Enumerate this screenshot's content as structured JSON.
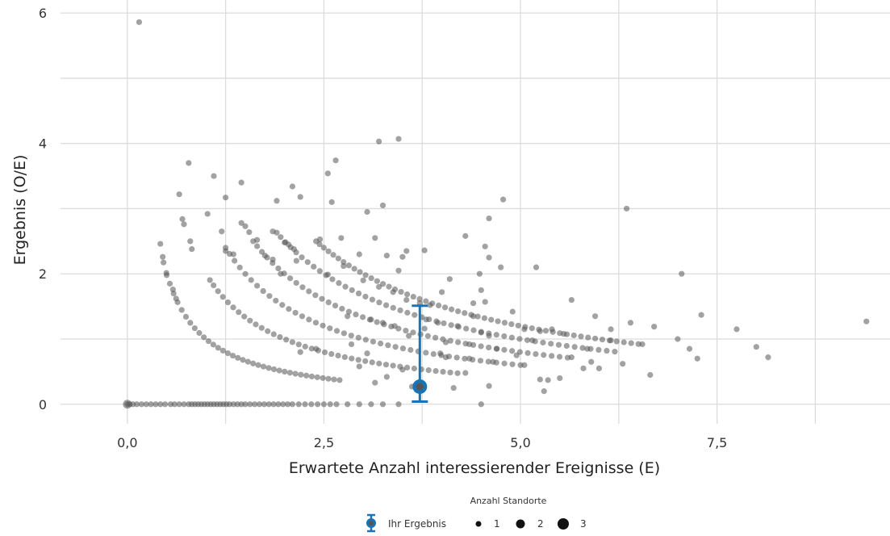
{
  "chart_data": {
    "type": "scatter",
    "xlabel": "Erwartete Anzahl interessierender Ereignisse (E)",
    "ylabel": "Ergebnis (O/E)",
    "xlim": [
      -0.85,
      9.7
    ],
    "ylim": [
      -0.3,
      6.2
    ],
    "x_ticks": [
      0,
      2.5,
      5,
      7.5
    ],
    "x_tick_labels": [
      "0,0",
      "2,5",
      "5,0",
      "7,5"
    ],
    "x_minor_ticks": [
      1.25,
      3.75,
      6.25,
      8.75
    ],
    "y_ticks": [
      0,
      2,
      4,
      6
    ],
    "y_tick_labels": [
      "0",
      "2",
      "4",
      "6"
    ],
    "y_minor_ticks": [
      1,
      3,
      5
    ],
    "grid": true,
    "point_color": "#555555",
    "highlight_color": "#1a73b5",
    "series": [
      {
        "name": "Ihr Ergebnis",
        "x": 3.72,
        "y": 0.27,
        "ci_low": 0.04,
        "ci_high": 1.51
      }
    ],
    "zero_points": [
      0.0,
      0.03,
      0.07,
      0.12,
      0.18,
      0.24,
      0.3,
      0.36,
      0.42,
      0.48,
      0.55,
      0.6,
      0.66,
      0.72,
      0.78,
      0.82,
      0.86,
      0.9,
      0.94,
      0.98,
      1.02,
      1.06,
      1.1,
      1.14,
      1.18,
      1.22,
      1.26,
      1.3,
      1.35,
      1.4,
      1.45,
      1.5,
      1.56,
      1.62,
      1.68,
      1.74,
      1.8,
      1.86,
      1.92,
      1.98,
      2.04,
      2.1,
      2.18,
      2.26,
      2.34,
      2.42,
      2.5,
      2.58,
      2.66,
      2.8,
      2.95,
      3.1,
      3.25,
      3.45,
      4.5
    ],
    "reference_curves": [
      {
        "count": 1,
        "x_start": 0.46,
        "x_end": 2.7
      },
      {
        "count": 2,
        "x_start": 1.05,
        "x_end": 4.2
      },
      {
        "count": 3,
        "x_start": 1.25,
        "x_end": 5.0
      },
      {
        "count": 4,
        "x_start": 1.6,
        "x_end": 5.6
      },
      {
        "count": 5,
        "x_start": 1.9,
        "x_end": 6.2
      },
      {
        "count": 6,
        "x_start": 2.4,
        "x_end": 6.5
      }
    ],
    "points": [
      [
        0.15,
        5.86
      ],
      [
        0.66,
        3.22
      ],
      [
        0.78,
        3.7
      ],
      [
        1.1,
        3.5
      ],
      [
        1.25,
        3.17
      ],
      [
        1.45,
        3.4
      ],
      [
        1.9,
        3.12
      ],
      [
        2.1,
        3.34
      ],
      [
        2.2,
        3.18
      ],
      [
        2.55,
        3.54
      ],
      [
        2.6,
        3.1
      ],
      [
        2.65,
        3.74
      ],
      [
        3.2,
        4.03
      ],
      [
        3.45,
        4.07
      ],
      [
        3.05,
        2.95
      ],
      [
        3.25,
        3.05
      ],
      [
        3.15,
        2.55
      ],
      [
        3.3,
        2.28
      ],
      [
        3.5,
        2.26
      ],
      [
        3.55,
        2.35
      ],
      [
        3.78,
        2.36
      ],
      [
        3.45,
        2.05
      ],
      [
        2.95,
        2.3
      ],
      [
        2.72,
        2.55
      ],
      [
        2.45,
        2.53
      ],
      [
        2.05,
        2.45
      ],
      [
        2.15,
        2.2
      ],
      [
        1.95,
        2.0
      ],
      [
        2.55,
        1.99
      ],
      [
        2.75,
        2.12
      ],
      [
        3.0,
        1.9
      ],
      [
        3.2,
        1.8
      ],
      [
        3.38,
        1.72
      ],
      [
        3.55,
        1.6
      ],
      [
        3.72,
        1.55
      ],
      [
        3.85,
        1.52
      ],
      [
        4.0,
        1.72
      ],
      [
        4.1,
        1.92
      ],
      [
        4.3,
        2.58
      ],
      [
        4.55,
        2.42
      ],
      [
        4.6,
        2.85
      ],
      [
        4.75,
        2.1
      ],
      [
        4.78,
        3.14
      ],
      [
        4.5,
        1.75
      ],
      [
        4.4,
        1.55
      ],
      [
        4.2,
        1.2
      ],
      [
        4.35,
        0.92
      ],
      [
        4.5,
        1.1
      ],
      [
        4.6,
        1.05
      ],
      [
        4.7,
        0.85
      ],
      [
        4.9,
        1.42
      ],
      [
        5.05,
        1.15
      ],
      [
        5.15,
        0.98
      ],
      [
        5.2,
        2.1
      ],
      [
        5.25,
        1.12
      ],
      [
        5.4,
        1.15
      ],
      [
        5.55,
        1.08
      ],
      [
        5.65,
        1.6
      ],
      [
        5.8,
        0.55
      ],
      [
        5.9,
        0.65
      ],
      [
        6.0,
        0.55
      ],
      [
        6.15,
        1.15
      ],
      [
        6.3,
        0.62
      ],
      [
        6.35,
        3.0
      ],
      [
        6.4,
        1.25
      ],
      [
        6.55,
        0.92
      ],
      [
        6.65,
        0.45
      ],
      [
        6.7,
        1.19
      ],
      [
        7.0,
        1.0
      ],
      [
        7.05,
        2.0
      ],
      [
        7.15,
        0.85
      ],
      [
        7.25,
        0.7
      ],
      [
        7.3,
        1.37
      ],
      [
        7.75,
        1.15
      ],
      [
        8.0,
        0.88
      ],
      [
        8.15,
        0.72
      ],
      [
        9.4,
        1.27
      ],
      [
        5.05,
        0.6
      ],
      [
        5.25,
        0.38
      ],
      [
        5.3,
        0.2
      ],
      [
        5.35,
        0.37
      ],
      [
        5.5,
        0.4
      ],
      [
        4.95,
        0.75
      ],
      [
        4.6,
        0.28
      ],
      [
        4.65,
        0.65
      ],
      [
        4.3,
        0.48
      ],
      [
        4.15,
        0.25
      ],
      [
        4.05,
        0.72
      ],
      [
        4.05,
        0.95
      ],
      [
        3.98,
        0.78
      ],
      [
        3.62,
        0.27
      ],
      [
        3.5,
        0.53
      ],
      [
        3.15,
        0.33
      ],
      [
        3.05,
        0.78
      ],
      [
        2.85,
        0.92
      ],
      [
        2.4,
        0.85
      ],
      [
        2.2,
        0.8
      ],
      [
        2.95,
        0.58
      ],
      [
        3.3,
        0.42
      ],
      [
        4.35,
        0.7
      ],
      [
        5.65,
        0.72
      ],
      [
        5.85,
        0.85
      ],
      [
        5.95,
        1.35
      ],
      [
        6.15,
        0.98
      ],
      [
        0.42,
        2.46
      ],
      [
        0.45,
        2.26
      ],
      [
        0.5,
        1.98
      ],
      [
        0.58,
        1.76
      ],
      [
        0.62,
        1.62
      ],
      [
        0.82,
        2.38
      ],
      [
        0.8,
        2.5
      ],
      [
        0.7,
        2.84
      ],
      [
        0.72,
        2.76
      ],
      [
        1.02,
        2.92
      ],
      [
        1.25,
        2.35
      ],
      [
        1.35,
        2.3
      ],
      [
        1.45,
        2.78
      ],
      [
        1.5,
        2.73
      ],
      [
        1.55,
        2.64
      ],
      [
        1.65,
        2.52
      ],
      [
        1.75,
        2.28
      ],
      [
        1.85,
        2.22
      ],
      [
        1.85,
        2.65
      ],
      [
        2.0,
        2.48
      ],
      [
        2.12,
        2.38
      ],
      [
        1.2,
        2.65
      ],
      [
        2.8,
        1.35
      ],
      [
        3.1,
        1.3
      ],
      [
        3.25,
        1.25
      ],
      [
        3.4,
        1.2
      ],
      [
        3.58,
        1.05
      ],
      [
        3.8,
        1.3
      ],
      [
        3.95,
        1.25
      ],
      [
        3.78,
        1.16
      ],
      [
        4.55,
        1.57
      ],
      [
        4.6,
        2.25
      ],
      [
        4.4,
        1.35
      ],
      [
        4.48,
        2.0
      ]
    ]
  },
  "legend": {
    "title": "Anzahl Standorte",
    "result_label": "Ihr Ergebnis",
    "sizes": [
      "1",
      "2",
      "3"
    ]
  }
}
